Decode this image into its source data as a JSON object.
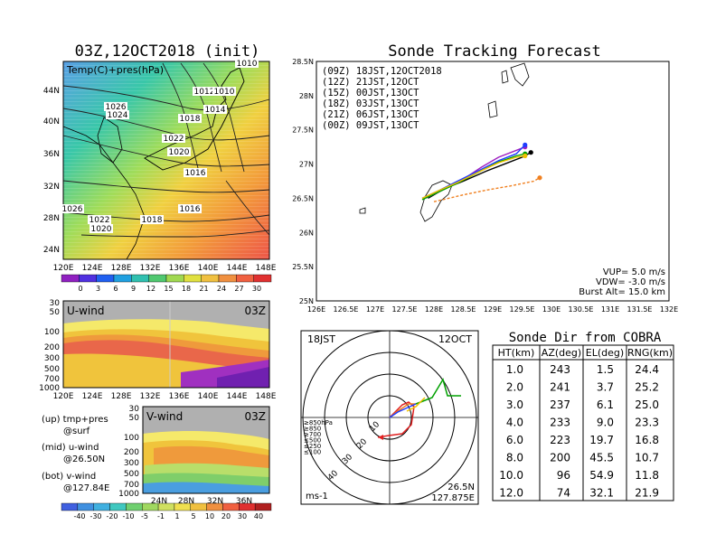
{
  "left_title": "03Z,12OCT2018 (init)",
  "right_title": "Sonde Tracking Forecast",
  "map_panel": {
    "label": "Temp(C)+pres(hPa)",
    "lat_labels": [
      "44N",
      "40N",
      "36N",
      "32N",
      "28N",
      "24N"
    ],
    "lon_labels": [
      "120E",
      "124E",
      "128E",
      "132E",
      "136E",
      "140E",
      "144E",
      "148E"
    ],
    "isobar_labels": [
      "1010",
      "1026",
      "1024",
      "1012",
      "1010",
      "1014",
      "1018",
      "1022",
      "1020",
      "1016",
      "1016",
      "1026",
      "1022",
      "1020",
      "1018"
    ],
    "colorbar_ticks": [
      "0",
      "3",
      "6",
      "9",
      "12",
      "15",
      "18",
      "21",
      "24",
      "27",
      "30"
    ]
  },
  "u_panel": {
    "label": "U-wind",
    "time": "03Z",
    "y_ticks": [
      "30",
      "50",
      "100",
      "200",
      "300",
      "500",
      "700",
      "1000"
    ],
    "x_ticks": [
      "120E",
      "124E",
      "128E",
      "132E",
      "136E",
      "140E",
      "144E",
      "148E"
    ]
  },
  "v_panel": {
    "label": "V-wind",
    "time": "03Z",
    "y_ticks": [
      "30",
      "50",
      "100",
      "200",
      "300",
      "500",
      "700",
      "1000"
    ],
    "x_ticks": [
      "24N",
      "28N",
      "32N",
      "36N"
    ],
    "colorbar_ticks": [
      "-40",
      "-30",
      "-20",
      "-10",
      "-5",
      "-1",
      "1",
      "5",
      "10",
      "20",
      "30",
      "40"
    ]
  },
  "legend_notes": [
    "(up) tmp+pres",
    "@surf",
    "(mid) u-wind",
    "@26.50N",
    "(bot) v-wind",
    "@127.84E"
  ],
  "track_panel": {
    "lat_ticks": [
      "28.5N",
      "28N",
      "27.5N",
      "27N",
      "26.5N",
      "26N",
      "25.5N",
      "25N"
    ],
    "lon_ticks": [
      "126E",
      "126.5E",
      "127E",
      "127.5E",
      "128E",
      "128.5E",
      "129E",
      "129.5E",
      "130E",
      "130.5E",
      "131E",
      "131.5E",
      "132E"
    ],
    "legend": [
      {
        "label": "(09Z) 18JST,12OCT2018",
        "color": "#000000"
      },
      {
        "label": "(12Z) 21JST,12OCT",
        "color": "#a020c0"
      },
      {
        "label": "(15Z) 00JST,13OCT",
        "color": "#1e3cff"
      },
      {
        "label": "(18Z) 03JST,13OCT",
        "color": "#00a000"
      },
      {
        "label": "(21Z) 06JST,13OCT",
        "color": "#f0c000"
      },
      {
        "label": "(00Z) 09JST,13OCT",
        "color": "#f08020"
      }
    ],
    "params": [
      "VUP= 5.0 m/s",
      "VDW= -3.0 m/s",
      "Burst Alt= 15.0 km"
    ]
  },
  "polar_panel": {
    "time": "18JST",
    "date": "12OCT",
    "units": "ms-1",
    "lat": "26.5N",
    "lon": "127.875E",
    "ring_labels": [
      "10",
      "20",
      "30",
      "40"
    ],
    "level_legend": [
      {
        "label": "≥850hPa",
        "color": "#e02020"
      },
      {
        "label": "≥850",
        "color": "#f08020"
      },
      {
        "label": "≥700",
        "color": "#f0c000"
      },
      {
        "label": "≤500",
        "color": "#00a000"
      },
      {
        "label": "≤250",
        "color": "#00b0b0"
      },
      {
        "label": "≤100",
        "color": "#1e3cff"
      }
    ]
  },
  "sonde_table": {
    "title": "Sonde Dir from COBRA",
    "headers": [
      "HT(km)",
      "AZ(deg)",
      "EL(deg)",
      "RNG(km)"
    ],
    "rows": [
      [
        "1.0",
        "243",
        "1.5",
        "24.4"
      ],
      [
        "2.0",
        "241",
        "3.7",
        "25.2"
      ],
      [
        "3.0",
        "237",
        "6.1",
        "25.0"
      ],
      [
        "4.0",
        "233",
        "9.0",
        "23.3"
      ],
      [
        "6.0",
        "223",
        "19.7",
        "16.8"
      ],
      [
        "8.0",
        "200",
        "45.5",
        "10.7"
      ],
      [
        "10.0",
        "96",
        "54.9",
        "11.8"
      ],
      [
        "12.0",
        "74",
        "32.1",
        "21.9"
      ]
    ]
  },
  "chart_data": {
    "type": "line",
    "title": "Sonde Tracking Forecast",
    "xlim": [
      126,
      132
    ],
    "ylim": [
      25,
      28.5
    ],
    "series": [
      {
        "name": "(09Z) 18JST,12OCT2018",
        "color": "#000000",
        "x": [
          127.9,
          128.2,
          128.5,
          128.9,
          129.2,
          129.5,
          129.65
        ],
        "y": [
          26.5,
          26.65,
          26.75,
          26.9,
          27.0,
          27.1,
          27.17
        ]
      },
      {
        "name": "(12Z) 21JST,12OCT",
        "color": "#a020c0",
        "x": [
          127.85,
          128.1,
          128.45,
          128.8,
          129.1,
          129.4,
          129.55
        ],
        "y": [
          26.5,
          26.6,
          26.75,
          26.95,
          27.1,
          27.2,
          27.25
        ]
      },
      {
        "name": "(15Z) 00JST,13OCT",
        "color": "#1e3cff",
        "x": [
          127.8,
          128.1,
          128.4,
          128.8,
          129.1,
          129.4,
          129.55
        ],
        "y": [
          26.5,
          26.62,
          26.75,
          26.92,
          27.05,
          27.15,
          27.28
        ]
      },
      {
        "name": "(18Z) 03JST,13OCT",
        "color": "#00a000",
        "x": [
          127.8,
          128.1,
          128.4,
          128.8,
          129.1,
          129.4,
          129.55
        ],
        "y": [
          26.48,
          26.6,
          26.72,
          26.9,
          27.03,
          27.12,
          27.15
        ]
      },
      {
        "name": "(21Z) 06JST,13OCT",
        "color": "#f0c000",
        "x": [
          127.8,
          128.1,
          128.4,
          128.8,
          129.1,
          129.4,
          129.55
        ],
        "y": [
          26.5,
          26.62,
          26.73,
          26.9,
          27.02,
          27.1,
          27.12
        ]
      },
      {
        "name": "(00Z) 09JST,13OCT",
        "color": "#f08020",
        "x": [
          128.0,
          128.5,
          128.9,
          129.3,
          129.7,
          129.8
        ],
        "y": [
          26.45,
          26.55,
          26.62,
          26.68,
          26.75,
          26.8
        ]
      }
    ]
  }
}
